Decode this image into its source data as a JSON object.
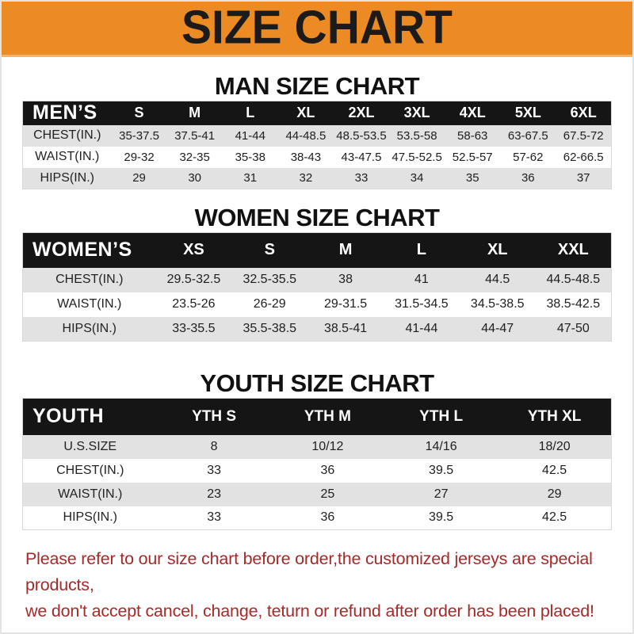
{
  "banner": {
    "title": "SIZE CHART"
  },
  "colors": {
    "banner_bg": "#EC8B23",
    "table_bar_bg": "#151515",
    "row_shade_bg": "#E2E2E2",
    "footer_text": "#A52A2A"
  },
  "sections": [
    {
      "heading": "MAN SIZE CHART",
      "header_label": "MEN’S",
      "columns": [
        "S",
        "M",
        "L",
        "XL",
        "2XL",
        "3XL",
        "4XL",
        "5XL",
        "6XL"
      ],
      "rows": [
        {
          "label": "CHEST(IN.)",
          "values": [
            "35-37.5",
            "37.5-41",
            "41-44",
            "44-48.5",
            "48.5-53.5",
            "53.5-58",
            "58-63",
            "63-67.5",
            "67.5-72"
          ]
        },
        {
          "label": "WAIST(IN.)",
          "values": [
            "29-32",
            "32-35",
            "35-38",
            "38-43",
            "43-47.5",
            "47.5-52.5",
            "52.5-57",
            "57-62",
            "62-66.5"
          ]
        },
        {
          "label": "HIPS(IN.)",
          "values": [
            "29",
            "30",
            "31",
            "32",
            "33",
            "34",
            "35",
            "36",
            "37"
          ]
        }
      ]
    },
    {
      "heading": "WOMEN SIZE CHART",
      "header_label": "WOMEN’S",
      "columns": [
        "XS",
        "S",
        "M",
        "L",
        "XL",
        "XXL"
      ],
      "rows": [
        {
          "label": "CHEST(IN.)",
          "values": [
            "29.5-32.5",
            "32.5-35.5",
            "38",
            "41",
            "44.5",
            "44.5-48.5"
          ]
        },
        {
          "label": "WAIST(IN.)",
          "values": [
            "23.5-26",
            "26-29",
            "29-31.5",
            "31.5-34.5",
            "34.5-38.5",
            "38.5-42.5"
          ]
        },
        {
          "label": "HIPS(IN.)",
          "values": [
            "33-35.5",
            "35.5-38.5",
            "38.5-41",
            "41-44",
            "44-47",
            "47-50"
          ]
        }
      ]
    },
    {
      "heading": "YOUTH SIZE CHART",
      "header_label": "YOUTH",
      "columns": [
        "YTH S",
        "YTH M",
        "YTH L",
        "YTH XL"
      ],
      "rows": [
        {
          "label": "U.S.SIZE",
          "values": [
            "8",
            "10/12",
            "14/16",
            "18/20"
          ]
        },
        {
          "label": "CHEST(IN.)",
          "values": [
            "33",
            "36",
            "39.5",
            "42.5"
          ]
        },
        {
          "label": "WAIST(IN.)",
          "values": [
            "23",
            "25",
            "27",
            "29"
          ]
        },
        {
          "label": "HIPS(IN.)",
          "values": [
            "33",
            "36",
            "39.5",
            "42.5"
          ]
        }
      ]
    }
  ],
  "footer": {
    "line1": "Please refer to our size chart before order,the customized jerseys are special products,",
    "line2": "we don't accept cancel, change, teturn or refund after order has been placed!"
  }
}
